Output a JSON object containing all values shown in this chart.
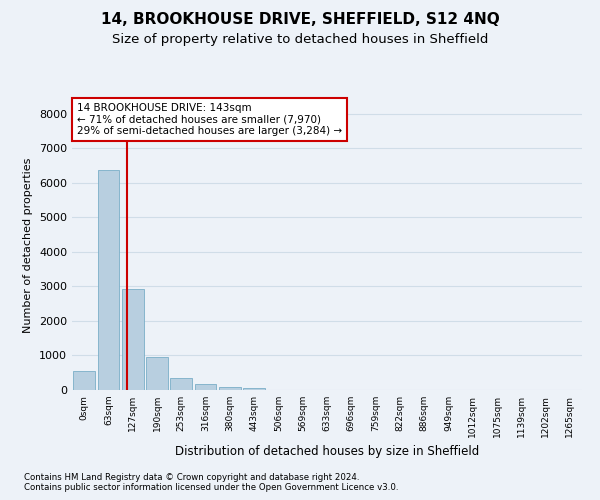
{
  "title1": "14, BROOKHOUSE DRIVE, SHEFFIELD, S12 4NQ",
  "title2": "Size of property relative to detached houses in Sheffield",
  "xlabel": "Distribution of detached houses by size in Sheffield",
  "ylabel": "Number of detached properties",
  "footer1": "Contains HM Land Registry data © Crown copyright and database right 2024.",
  "footer2": "Contains public sector information licensed under the Open Government Licence v3.0.",
  "bin_labels": [
    "0sqm",
    "63sqm",
    "127sqm",
    "190sqm",
    "253sqm",
    "316sqm",
    "380sqm",
    "443sqm",
    "506sqm",
    "569sqm",
    "633sqm",
    "696sqm",
    "759sqm",
    "822sqm",
    "886sqm",
    "949sqm",
    "1012sqm",
    "1075sqm",
    "1139sqm",
    "1202sqm",
    "1265sqm"
  ],
  "bar_values": [
    560,
    6380,
    2920,
    970,
    360,
    160,
    90,
    60,
    0,
    0,
    0,
    0,
    0,
    0,
    0,
    0,
    0,
    0,
    0,
    0,
    0
  ],
  "bar_color": "#b8cfe0",
  "bar_edge_color": "#7aaec8",
  "grid_color": "#d0dde8",
  "annotation_text": "14 BROOKHOUSE DRIVE: 143sqm\n← 71% of detached houses are smaller (7,970)\n29% of semi-detached houses are larger (3,284) →",
  "vline_color": "#cc0000",
  "annotation_box_color": "#ffffff",
  "annotation_box_edge": "#cc0000",
  "ylim": [
    0,
    8400
  ],
  "yticks": [
    0,
    1000,
    2000,
    3000,
    4000,
    5000,
    6000,
    7000,
    8000
  ],
  "background_color": "#edf2f8",
  "axes_background": "#edf2f8",
  "title1_fontsize": 11,
  "title2_fontsize": 9.5
}
